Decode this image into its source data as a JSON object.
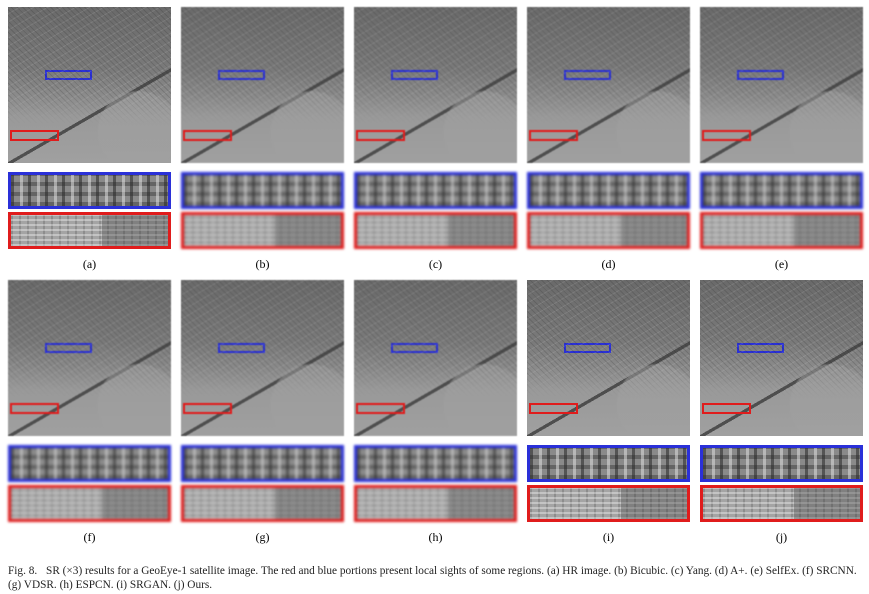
{
  "figure": {
    "rows": [
      {
        "panels": [
          {
            "label": "(a)"
          },
          {
            "label": "(b)"
          },
          {
            "label": "(c)"
          },
          {
            "label": "(d)"
          },
          {
            "label": "(e)"
          }
        ]
      },
      {
        "panels": [
          {
            "label": "(f)"
          },
          {
            "label": "(g)"
          },
          {
            "label": "(h)"
          },
          {
            "label": "(i)"
          },
          {
            "label": "(j)"
          }
        ]
      }
    ],
    "colors": {
      "red_box": "#e01c1c",
      "blue_box": "#2a30d8"
    },
    "caption": {
      "fig_number": "Fig. 8.",
      "text": "SR (×3) results for a GeoEye-1 satellite image. The red and blue portions present local sights of some regions. (a) HR image. (b) Bicubic. (c) Yang. (d) A+. (e) SelfEx. (f) SRCNN. (g) VDSR. (h) ESPCN. (i) SRGAN. (j) Ours."
    }
  }
}
